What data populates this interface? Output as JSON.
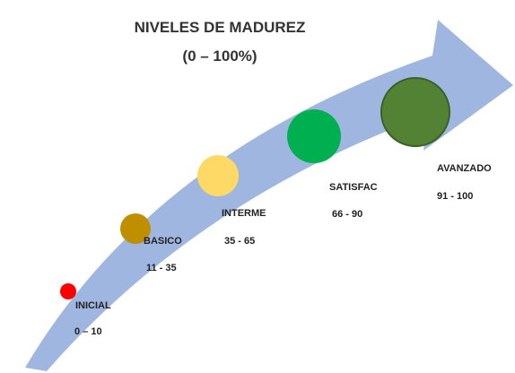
{
  "title": "NIVELES DE MADUREZ",
  "subtitle": "(0 – 100%)",
  "nodes": [
    {
      "label": "INICIAL",
      "range": "0 – 10",
      "color": "#ff0000"
    },
    {
      "label": "BASICO",
      "range": "11 - 35",
      "color": "#bf8f00"
    },
    {
      "label": "INTERME",
      "range": "35 - 65",
      "color": "#ffd966"
    },
    {
      "label": "SATISFAC",
      "range": "66 - 90",
      "color": "#00b050"
    },
    {
      "label": "AVANZADO",
      "range": "91 - 100",
      "color": "#548235"
    }
  ]
}
